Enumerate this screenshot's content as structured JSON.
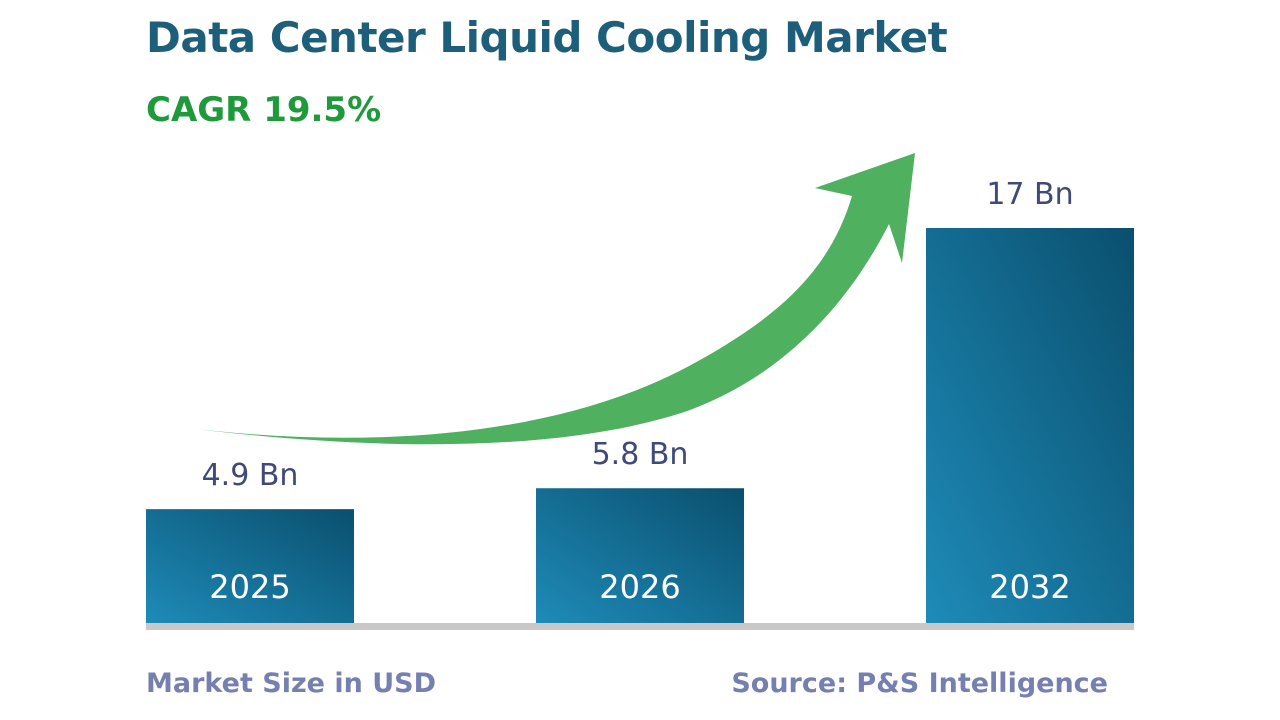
{
  "title": "Data Center Liquid Cooling Market",
  "cagr_label": "CAGR 19.5%",
  "footer": {
    "left": "Market Size in USD",
    "right": "Source: P&S Intelligence"
  },
  "colors": {
    "title": "#1d5f7a",
    "cagr": "#1f9a3a",
    "footer": "#7580b0",
    "value_label": "#3f4a78",
    "bar_light": "#1e8bb8",
    "bar_dark": "#0a4f6e",
    "arrow": "#4fb060",
    "baseline": "#c9c9c9",
    "bar_text": "#ffffff"
  },
  "chart_data": {
    "type": "bar",
    "title": "Data Center Liquid Cooling Market",
    "categories": [
      "2025",
      "2026",
      "2032"
    ],
    "values": [
      4.9,
      5.8,
      17
    ],
    "value_labels": [
      "4.9 Bn",
      "5.8 Bn",
      "17 Bn"
    ],
    "unit": "USD Bn",
    "ylim": [
      0,
      17
    ],
    "annotation": "CAGR 19.5%",
    "grid": false,
    "legend": "none"
  }
}
